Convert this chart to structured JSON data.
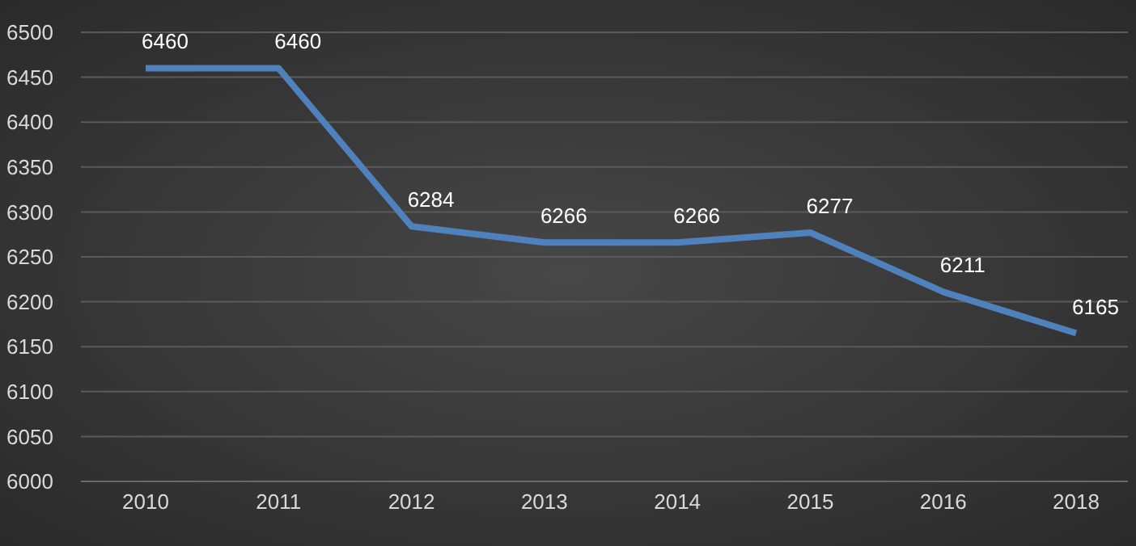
{
  "chart_data": {
    "type": "line",
    "categories": [
      "2010",
      "2011",
      "2012",
      "2013",
      "2014",
      "2015",
      "2016",
      "2018"
    ],
    "values": [
      6460,
      6460,
      6284,
      6266,
      6266,
      6277,
      6211,
      6165
    ],
    "color": "#4f81bd",
    "ylim": [
      6000,
      6500
    ],
    "yticks": [
      6000,
      6050,
      6100,
      6150,
      6200,
      6250,
      6300,
      6350,
      6400,
      6450,
      6500
    ],
    "grid": "y",
    "data_labels": true
  }
}
